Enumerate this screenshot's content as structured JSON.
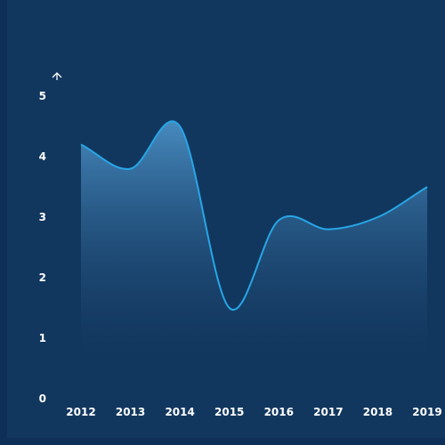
{
  "chart_data": {
    "type": "area",
    "title": "",
    "xlabel": "",
    "ylabel": "",
    "x": [
      "2012",
      "2013",
      "2014",
      "2015",
      "2016",
      "2017",
      "2018",
      "2019"
    ],
    "y_ticks": [
      "0",
      "1",
      "2",
      "3",
      "4",
      "5"
    ],
    "ylim": [
      0,
      5
    ],
    "series": [
      {
        "values": [
          4.2,
          3.8,
          4.5,
          1.5,
          2.95,
          2.8,
          3.0,
          3.5
        ],
        "color": "#27a6e6"
      }
    ],
    "smooth": true,
    "fill": "gradient",
    "grid": false,
    "legend": "none",
    "y_axis_arrow": true
  },
  "theme": {
    "background": "#0e2f58",
    "panel": "#12375f",
    "text": "#ffffff",
    "line": "#27a6e6",
    "area_top": "#4a8fc4",
    "area_bottom": "#12375f"
  }
}
